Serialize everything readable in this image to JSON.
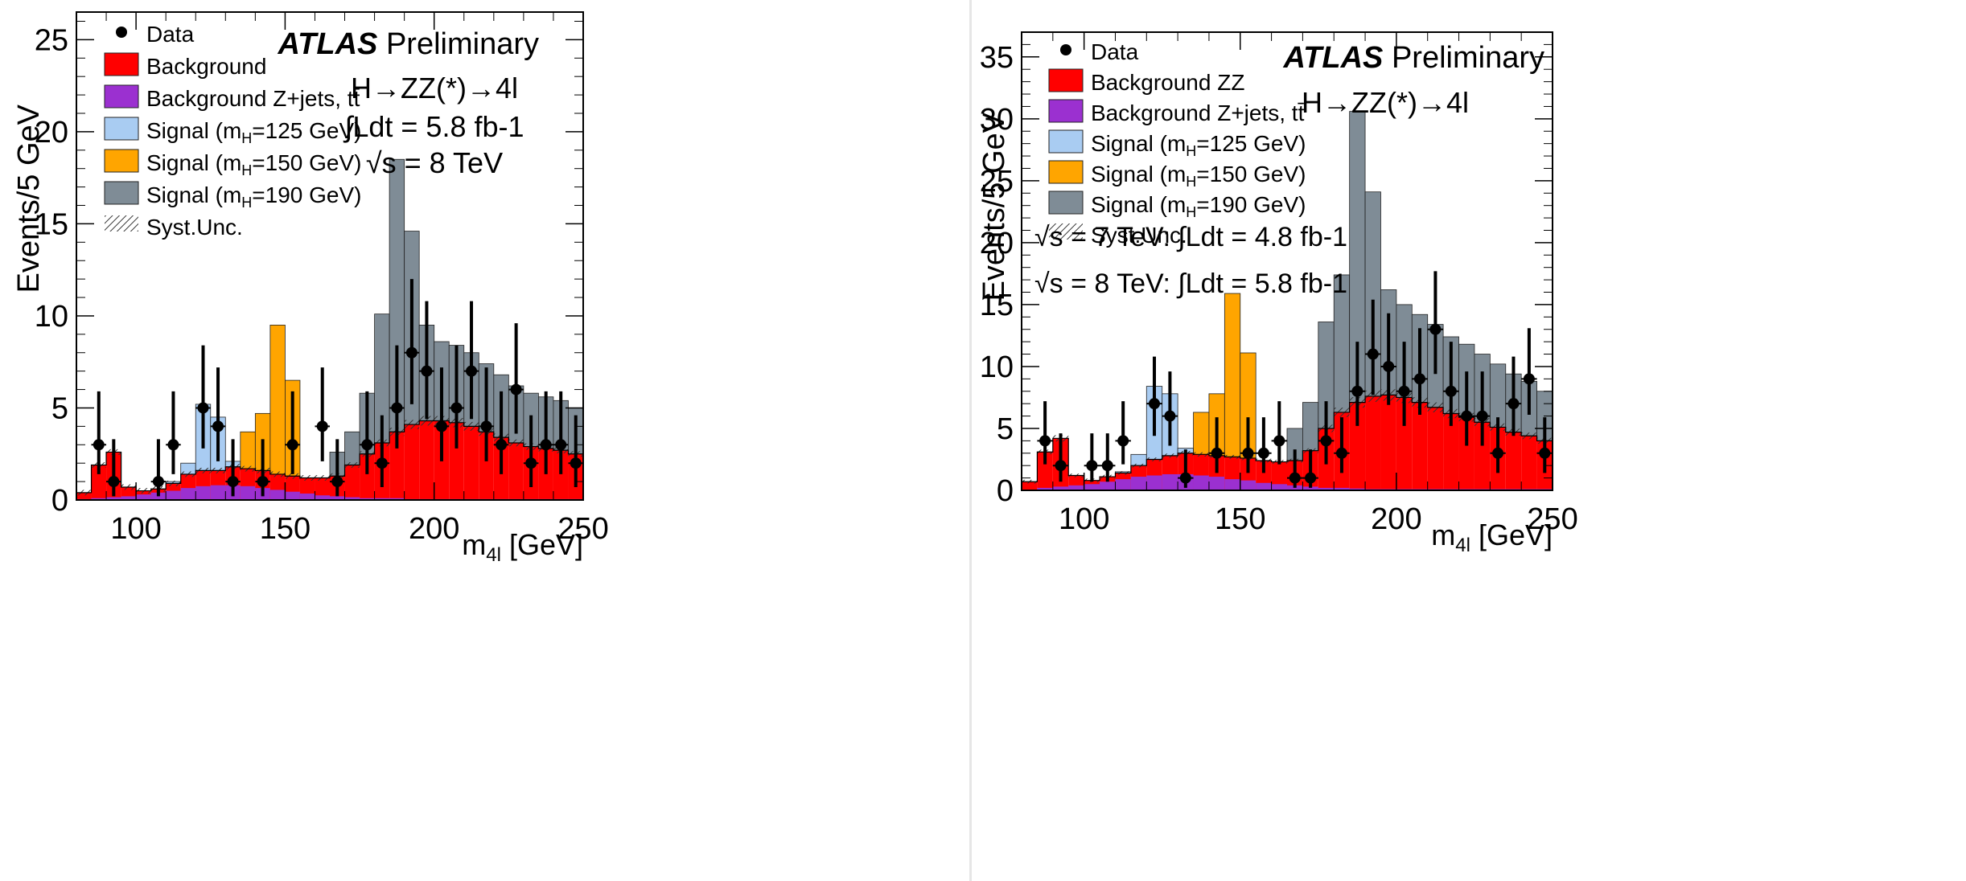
{
  "colors": {
    "background": "#ff0000",
    "background_zjets": "#9b30d0",
    "signal_125": "#a9ccf2",
    "signal_150": "#ffa500",
    "signal_190": "#7f8c96",
    "data": "#000000",
    "syst": "#333333"
  },
  "chart_data": [
    {
      "type": "bar",
      "title": "ATLAS Preliminary",
      "title_bold": "ATLAS",
      "title_rest": "Preliminary",
      "xlabel": "m4l [GeV]",
      "xlabel_main": "m",
      "xlabel_sub": "4l",
      "xlabel_unit": "[GeV]",
      "ylabel": "Events/5 GeV",
      "xlim": [
        80,
        250
      ],
      "ylim": [
        0,
        26.5
      ],
      "xticks": [
        100,
        150,
        200,
        250
      ],
      "yticks": [
        0,
        5,
        10,
        15,
        20,
        25
      ],
      "legend": [
        {
          "key": "data",
          "label": "Data",
          "sub": "",
          "suffix": ""
        },
        {
          "key": "background",
          "label": "Background",
          "sub": "",
          "suffix": ""
        },
        {
          "key": "background_zjets",
          "label": "Background Z+jets, tt̄",
          "sub": "",
          "suffix": ""
        },
        {
          "key": "signal_125",
          "label": "Signal (m",
          "sub": "H",
          "suffix": "=125 GeV)"
        },
        {
          "key": "signal_150",
          "label": "Signal (m",
          "sub": "H",
          "suffix": "=150 GeV)"
        },
        {
          "key": "signal_190",
          "label": "Signal (m",
          "sub": "H",
          "suffix": "=190 GeV)"
        },
        {
          "key": "syst",
          "label": "Syst.Unc.",
          "sub": "",
          "suffix": ""
        }
      ],
      "annotations": [
        "H→ZZ(*)→4l",
        "∫Ldt = 5.8 fb-1",
        "√s = 8 TeV"
      ],
      "bin_edges_start": 80,
      "bin_width": 5,
      "series": [
        {
          "name": "Background",
          "key": "background",
          "values": [
            0.4,
            1.9,
            2.6,
            0.7,
            0.5,
            0.6,
            0.9,
            1.4,
            1.6,
            1.6,
            1.8,
            1.7,
            1.6,
            1.4,
            1.3,
            1.2,
            1.2,
            1.3,
            1.9,
            2.5,
            3.1,
            3.7,
            4.1,
            4.3,
            4.3,
            4.2,
            4.0,
            3.7,
            3.4,
            3.1,
            2.9,
            2.8,
            2.7,
            2.5
          ]
        },
        {
          "name": "Background Z+jets, tt̄",
          "key": "background_zjets",
          "values": [
            0.05,
            0.1,
            0.15,
            0.2,
            0.3,
            0.4,
            0.5,
            0.65,
            0.75,
            0.8,
            0.8,
            0.75,
            0.65,
            0.55,
            0.45,
            0.35,
            0.25,
            0.2,
            0.15,
            0.1,
            0.1,
            0.1,
            0.05,
            0.05,
            0.05,
            0.05,
            0.05,
            0.05,
            0.05,
            0.05,
            0.05,
            0.05,
            0.05,
            0.05
          ]
        },
        {
          "name": "Signal (mH=125 GeV)",
          "key": "signal_125",
          "values": [
            0,
            0,
            0,
            0,
            0,
            0,
            0.1,
            0.6,
            3.6,
            2.9,
            0.3,
            0,
            0,
            0,
            0,
            0,
            0,
            0,
            0,
            0,
            0,
            0,
            0,
            0,
            0,
            0,
            0,
            0,
            0,
            0,
            0,
            0,
            0,
            0
          ]
        },
        {
          "name": "Signal (mH=150 GeV)",
          "key": "signal_150",
          "values": [
            0,
            0,
            0,
            0,
            0,
            0,
            0,
            0,
            0,
            0,
            0,
            2.0,
            3.1,
            8.1,
            5.2,
            0,
            0,
            0,
            0,
            0,
            0,
            0,
            0,
            0,
            0,
            0,
            0,
            0,
            0,
            0,
            0,
            0,
            0,
            0
          ]
        },
        {
          "name": "Signal (mH=190 GeV)",
          "key": "signal_190",
          "values": [
            0,
            0,
            0,
            0,
            0,
            0,
            0,
            0,
            0,
            0,
            0,
            0,
            0,
            0,
            0,
            0,
            0,
            1.3,
            1.8,
            3.3,
            7.0,
            14.8,
            10.5,
            5.2,
            4.3,
            4.2,
            4.0,
            3.7,
            3.4,
            3.1,
            2.9,
            2.8,
            2.7,
            2.5
          ]
        }
      ],
      "data_points": {
        "x": [
          87.5,
          92.5,
          107.5,
          112.5,
          122.5,
          127.5,
          132.5,
          142.5,
          152.5,
          162.5,
          167.5,
          177.5,
          182.5,
          187.5,
          192.5,
          197.5,
          202.5,
          207.5,
          212.5,
          217.5,
          222.5,
          227.5,
          232.5,
          237.5,
          242.5,
          247.5
        ],
        "y": [
          3,
          1,
          1,
          3,
          5,
          4,
          1,
          1,
          3,
          4,
          1,
          3,
          2,
          5,
          8,
          7,
          4,
          5,
          7,
          4,
          3,
          6,
          2,
          3,
          3,
          2
        ],
        "err_hi": [
          2.9,
          2.3,
          2.3,
          2.9,
          3.4,
          3.2,
          2.3,
          2.3,
          2.9,
          3.2,
          2.3,
          2.9,
          2.6,
          3.4,
          4.0,
          3.8,
          3.2,
          3.4,
          3.8,
          3.2,
          2.9,
          3.6,
          2.6,
          2.9,
          2.9,
          2.6
        ],
        "err_lo": [
          1.6,
          0.8,
          0.8,
          1.6,
          2.2,
          1.9,
          0.8,
          0.8,
          1.6,
          1.9,
          0.8,
          1.6,
          1.3,
          2.2,
          2.8,
          2.6,
          1.9,
          2.2,
          2.6,
          1.9,
          1.6,
          2.4,
          1.3,
          1.6,
          1.6,
          1.3
        ]
      }
    },
    {
      "type": "bar",
      "title": "ATLAS Preliminary",
      "title_bold": "ATLAS",
      "title_rest": "Preliminary",
      "xlabel": "m4l [GeV]",
      "xlabel_main": "m",
      "xlabel_sub": "4l",
      "xlabel_unit": "[GeV]",
      "ylabel": "Events/5 GeV",
      "xlim": [
        80,
        250
      ],
      "ylim": [
        0,
        37
      ],
      "xticks": [
        100,
        150,
        200,
        250
      ],
      "yticks": [
        0,
        5,
        10,
        15,
        20,
        25,
        30,
        35
      ],
      "legend": [
        {
          "key": "data",
          "label": "Data",
          "sub": "",
          "suffix": ""
        },
        {
          "key": "background",
          "label": "Background ZZ",
          "sub": "",
          "suffix": ""
        },
        {
          "key": "background_zjets",
          "label": "Background Z+jets, tt̄",
          "sub": "",
          "suffix": ""
        },
        {
          "key": "signal_125",
          "label": "Signal (m",
          "sub": "H",
          "suffix": "=125 GeV)"
        },
        {
          "key": "signal_150",
          "label": "Signal (m",
          "sub": "H",
          "suffix": "=150 GeV)"
        },
        {
          "key": "signal_190",
          "label": "Signal (m",
          "sub": "H",
          "suffix": "=190 GeV)"
        },
        {
          "key": "syst",
          "label": "Syst.Unc.",
          "sub": "",
          "suffix": ""
        }
      ],
      "annotations": [
        "H→ZZ(*)→4l",
        "√s = 7 TeV: ∫Ldt = 4.8 fb-1",
        "√s = 8 TeV: ∫Ldt = 5.8 fb-1"
      ],
      "bin_edges_start": 80,
      "bin_width": 5,
      "series": [
        {
          "name": "Background ZZ",
          "key": "background",
          "values": [
            0.7,
            3.1,
            4.2,
            1.2,
            0.8,
            1.1,
            1.4,
            2.0,
            2.5,
            2.8,
            3.0,
            2.9,
            2.8,
            2.7,
            2.6,
            2.4,
            2.3,
            2.4,
            3.2,
            5.0,
            6.3,
            7.1,
            7.6,
            7.7,
            7.5,
            7.1,
            6.7,
            6.2,
            5.9,
            5.5,
            5.1,
            4.7,
            4.4,
            4.0
          ]
        },
        {
          "name": "Background Z+jets, tt̄",
          "key": "background_zjets",
          "values": [
            0.05,
            0.2,
            0.3,
            0.4,
            0.5,
            0.7,
            0.9,
            1.1,
            1.2,
            1.3,
            1.3,
            1.2,
            1.1,
            0.9,
            0.8,
            0.6,
            0.5,
            0.4,
            0.3,
            0.2,
            0.2,
            0.15,
            0.1,
            0.1,
            0.1,
            0.1,
            0.1,
            0.1,
            0.1,
            0.1,
            0.1,
            0.1,
            0.1,
            0.1
          ]
        },
        {
          "name": "Signal (mH=125 GeV)",
          "key": "signal_125",
          "values": [
            0,
            0,
            0,
            0,
            0,
            0,
            0.1,
            0.9,
            5.9,
            5.0,
            0.4,
            0,
            0,
            0,
            0,
            0,
            0,
            0,
            0,
            0,
            0,
            0,
            0,
            0,
            0,
            0,
            0,
            0,
            0,
            0,
            0,
            0,
            0,
            0
          ]
        },
        {
          "name": "Signal (mH=150 GeV)",
          "key": "signal_150",
          "values": [
            0,
            0,
            0,
            0,
            0,
            0,
            0,
            0,
            0,
            0,
            0,
            3.4,
            5.0,
            13.2,
            8.5,
            0,
            0,
            0,
            0,
            0,
            0,
            0,
            0,
            0,
            0,
            0,
            0,
            0,
            0,
            0,
            0,
            0,
            0,
            0
          ]
        },
        {
          "name": "Signal (mH=190 GeV)",
          "key": "signal_190",
          "values": [
            0,
            0,
            0,
            0,
            0,
            0,
            0,
            0,
            0,
            0,
            0,
            0,
            0,
            0,
            0,
            0,
            0,
            2.6,
            3.9,
            8.6,
            11.1,
            23.5,
            16.5,
            8.5,
            7.5,
            7.1,
            6.7,
            6.2,
            5.9,
            5.5,
            5.1,
            4.7,
            4.4,
            4.0
          ]
        }
      ],
      "data_points": {
        "x": [
          87.5,
          92.5,
          102.5,
          107.5,
          112.5,
          122.5,
          127.5,
          132.5,
          142.5,
          152.5,
          157.5,
          162.5,
          167.5,
          172.5,
          177.5,
          182.5,
          187.5,
          192.5,
          197.5,
          202.5,
          207.5,
          212.5,
          217.5,
          222.5,
          227.5,
          232.5,
          237.5,
          242.5,
          247.5
        ],
        "y": [
          4,
          2,
          2,
          2,
          4,
          7,
          6,
          1,
          3,
          3,
          3,
          4,
          1,
          1,
          4,
          3,
          8,
          11,
          10,
          8,
          9,
          13,
          8,
          6,
          6,
          3,
          7,
          9,
          3
        ],
        "err_hi": [
          3.2,
          2.6,
          2.6,
          2.6,
          3.2,
          3.8,
          3.6,
          2.3,
          2.9,
          2.9,
          2.9,
          3.2,
          2.3,
          2.3,
          3.2,
          2.9,
          4.0,
          4.4,
          4.3,
          4.0,
          4.1,
          4.7,
          4.0,
          3.6,
          3.6,
          2.9,
          3.8,
          4.1,
          2.9
        ],
        "err_lo": [
          1.9,
          1.3,
          1.3,
          1.3,
          1.9,
          2.6,
          2.4,
          0.8,
          1.6,
          1.6,
          1.6,
          1.9,
          0.8,
          0.8,
          1.9,
          1.6,
          2.8,
          3.3,
          3.1,
          2.8,
          2.9,
          3.6,
          2.8,
          2.4,
          2.4,
          1.6,
          2.6,
          2.9,
          1.6
        ]
      }
    }
  ]
}
